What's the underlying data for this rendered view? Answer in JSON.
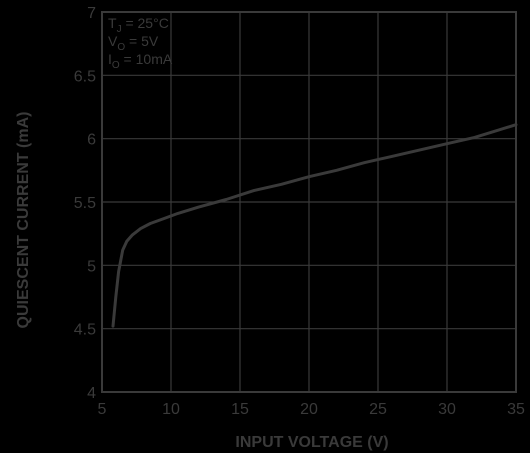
{
  "chart_data": {
    "type": "line",
    "xlabel": "INPUT VOLTAGE (V)",
    "ylabel": "QUIESCENT CURRENT (mA)",
    "xlim": [
      5,
      35
    ],
    "ylim": [
      4,
      7
    ],
    "x_ticks": [
      5,
      10,
      15,
      20,
      25,
      30,
      35
    ],
    "y_ticks": [
      4,
      4.5,
      5,
      5.5,
      6,
      6.5,
      7
    ],
    "grid": true,
    "line_color": "#3a3a3a",
    "grid_color": "#3a3a3a",
    "text_color": "#3a3a3a",
    "background": "#000000",
    "conditions": [
      {
        "main": "T",
        "sub": "J",
        "rest": " = 25°C"
      },
      {
        "main": "V",
        "sub": "O",
        "rest": " = 5V"
      },
      {
        "main": "I",
        "sub": "O",
        "rest": " = 10mA"
      }
    ],
    "series": [
      {
        "x": [
          5.8,
          6.0,
          6.2,
          6.5,
          6.8,
          7.2,
          7.8,
          8.5,
          9.5,
          10.5,
          12,
          14,
          16,
          18,
          20,
          22,
          24,
          26,
          28,
          30,
          32,
          35
        ],
        "y": [
          4.52,
          4.75,
          4.95,
          5.12,
          5.19,
          5.24,
          5.29,
          5.33,
          5.37,
          5.41,
          5.46,
          5.52,
          5.59,
          5.64,
          5.7,
          5.75,
          5.81,
          5.86,
          5.91,
          5.96,
          6.01,
          6.11
        ]
      }
    ]
  }
}
